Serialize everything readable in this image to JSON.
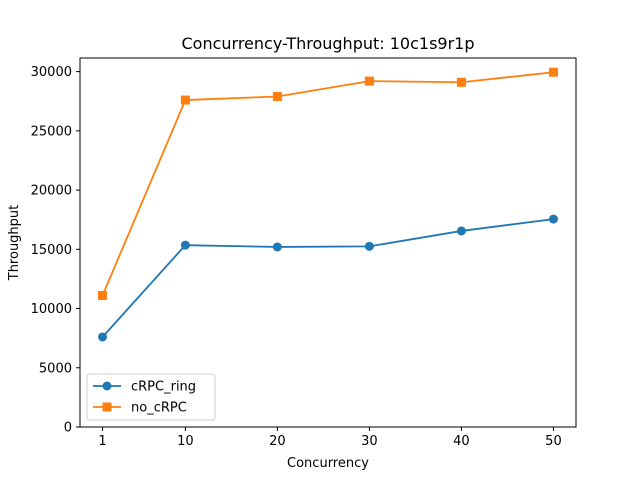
{
  "chart_data": {
    "type": "line",
    "title": "Concurrency-Throughput: 10c1s9r1p",
    "xlabel": "Concurrency",
    "ylabel": "Throughput",
    "x": [
      1,
      10,
      20,
      30,
      40,
      50
    ],
    "xticks": [
      "1",
      "10",
      "20",
      "30",
      "40",
      "50"
    ],
    "xlim": [
      -1.45,
      52.45
    ],
    "yticks": [
      0,
      5000,
      10000,
      15000,
      20000,
      25000,
      30000
    ],
    "ylim": [
      0,
      31150
    ],
    "grid": false,
    "legend_position": "lower-left",
    "series": [
      {
        "name": "cRPC_ring",
        "color": "#1f77b4",
        "marker": "circle",
        "values": [
          7600,
          15350,
          15200,
          15250,
          16550,
          17550
        ]
      },
      {
        "name": "no_cRPC",
        "color": "#ff7f0e",
        "marker": "square",
        "values": [
          11100,
          27600,
          27900,
          29200,
          29100,
          29950
        ]
      }
    ]
  }
}
